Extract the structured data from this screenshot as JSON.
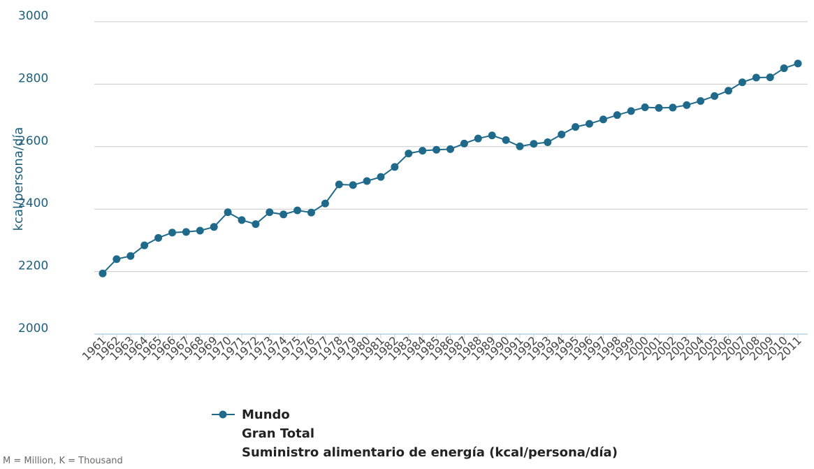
{
  "chart_data": {
    "type": "line",
    "ylabel": "kcal/persona/día",
    "xlabel": "",
    "ylim": [
      2000,
      3000
    ],
    "yticks": [
      "2000",
      "2200",
      "2400",
      "2600",
      "2800",
      "3000"
    ],
    "categories": [
      "1961",
      "1962",
      "1963",
      "1964",
      "1965",
      "1966",
      "1967",
      "1968",
      "1969",
      "1970",
      "1971",
      "1972",
      "1973",
      "1974",
      "1975",
      "1976",
      "1977",
      "1978",
      "1979",
      "1980",
      "1981",
      "1982",
      "1983",
      "1984",
      "1985",
      "1986",
      "1987",
      "1988",
      "1989",
      "1990",
      "1991",
      "1992",
      "1993",
      "1994",
      "1995",
      "1996",
      "1997",
      "1998",
      "1999",
      "2000",
      "2001",
      "2002",
      "2003",
      "2004",
      "2005",
      "2006",
      "2007",
      "2008",
      "2009",
      "2010",
      "2011"
    ],
    "series": [
      {
        "name": "Mundo",
        "color": "#1f6a8a",
        "values": [
          2194,
          2240,
          2250,
          2284,
          2308,
          2325,
          2327,
          2331,
          2343,
          2390,
          2365,
          2352,
          2390,
          2383,
          2396,
          2389,
          2418,
          2479,
          2477,
          2490,
          2503,
          2535,
          2578,
          2587,
          2590,
          2592,
          2610,
          2626,
          2636,
          2621,
          2601,
          2609,
          2614,
          2639,
          2663,
          2673,
          2687,
          2701,
          2714,
          2726,
          2724,
          2725,
          2733,
          2746,
          2762,
          2779,
          2806,
          2821,
          2822,
          2851,
          2866
        ]
      }
    ],
    "legend": {
      "position": "bottom-center",
      "lines": [
        "Mundo",
        "Gran Total",
        "Suministro alimentario de energía (kcal/persona/día)"
      ]
    },
    "grid": true
  },
  "footnote": "M = Million, K = Thousand"
}
